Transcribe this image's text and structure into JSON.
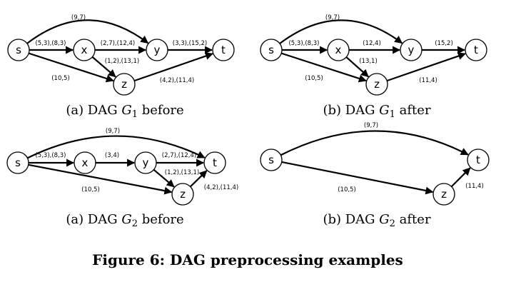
{
  "figure_caption": "Figure 6: DAG preprocessing examples",
  "panels": [
    {
      "id": "g1-before",
      "caption_prefix": "(a) DAG ",
      "caption_graph": "G",
      "caption_sub": "1",
      "caption_suffix": " before",
      "nodes": [
        "s",
        "x",
        "y",
        "z",
        "t"
      ],
      "edges": [
        {
          "from": "s",
          "to": "y",
          "label": "(9,7)"
        },
        {
          "from": "s",
          "to": "x",
          "label": "(5,3),(8,3)"
        },
        {
          "from": "x",
          "to": "y",
          "label": "(2,7),(12,4)"
        },
        {
          "from": "x",
          "to": "z",
          "label": "(1,2),(13,1)"
        },
        {
          "from": "y",
          "to": "t",
          "label": "(3,3),(15,2)"
        },
        {
          "from": "s",
          "to": "z",
          "label": "(10,5)"
        },
        {
          "from": "z",
          "to": "t",
          "label": "(4,2),(11,4)"
        }
      ]
    },
    {
      "id": "g1-after",
      "caption_prefix": "(b) DAG ",
      "caption_graph": "G",
      "caption_sub": "1",
      "caption_suffix": " after",
      "nodes": [
        "s",
        "x",
        "y",
        "z",
        "t"
      ],
      "edges": [
        {
          "from": "s",
          "to": "y",
          "label": "(9,7)"
        },
        {
          "from": "s",
          "to": "x",
          "label": "(5,3),(8,3)"
        },
        {
          "from": "x",
          "to": "y",
          "label": "(12,4)"
        },
        {
          "from": "x",
          "to": "z",
          "label": "(13,1)"
        },
        {
          "from": "y",
          "to": "t",
          "label": "(15,2)"
        },
        {
          "from": "s",
          "to": "z",
          "label": "(10,5)"
        },
        {
          "from": "z",
          "to": "t",
          "label": "(11,4)"
        }
      ]
    },
    {
      "id": "g2-before",
      "caption_prefix": "(a) DAG ",
      "caption_graph": "G",
      "caption_sub": "2",
      "caption_suffix": " before",
      "nodes": [
        "s",
        "x",
        "y",
        "z",
        "t"
      ],
      "edges": [
        {
          "from": "s",
          "to": "t",
          "label": "(9,7)"
        },
        {
          "from": "s",
          "to": "x",
          "label": "(5,3),(8,3)"
        },
        {
          "from": "x",
          "to": "y",
          "label": "(3,4)"
        },
        {
          "from": "y",
          "to": "t",
          "label": "(2,7),(12,4)"
        },
        {
          "from": "y",
          "to": "z",
          "label": "(1,2),(13,1)"
        },
        {
          "from": "s",
          "to": "z",
          "label": "(10,5)"
        },
        {
          "from": "z",
          "to": "t",
          "label": "(4,2),(11,4)"
        }
      ]
    },
    {
      "id": "g2-after",
      "caption_prefix": "(b) DAG ",
      "caption_graph": "G",
      "caption_sub": "2",
      "caption_suffix": " after",
      "nodes": [
        "s",
        "z",
        "t"
      ],
      "edges": [
        {
          "from": "s",
          "to": "t",
          "label": "(9,7)"
        },
        {
          "from": "s",
          "to": "z",
          "label": "(10,5)"
        },
        {
          "from": "z",
          "to": "t",
          "label": "(11,4)"
        }
      ]
    }
  ]
}
